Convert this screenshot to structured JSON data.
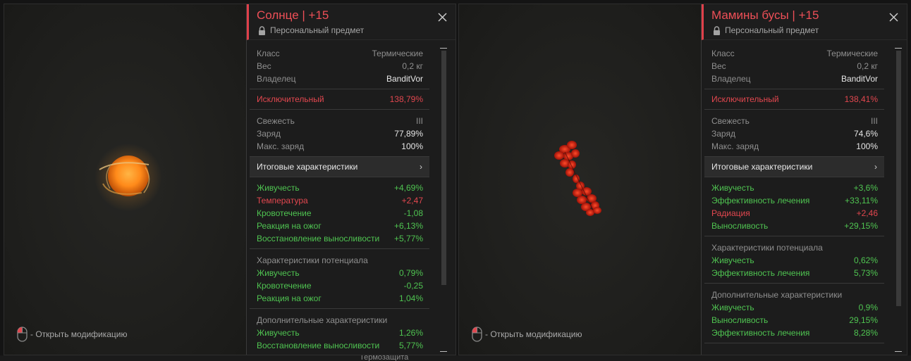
{
  "hint_label": "- Открыть модификацию",
  "bottom_strip_text": "Термозащита",
  "windows": [
    {
      "title": "Солнце | +15",
      "personal": "Персональный предмет",
      "info": [
        {
          "k": "Класс",
          "v": "Термические"
        },
        {
          "k": "Вес",
          "v": "0,2 кг"
        },
        {
          "k": "Владелец",
          "v": "BanditVor"
        }
      ],
      "quality": {
        "k": "Исключительный",
        "v": "138,79%"
      },
      "state": [
        {
          "k": "Свежесть",
          "v": "III"
        },
        {
          "k": "Заряд",
          "v": "77,89%"
        },
        {
          "k": "Макс. заряд",
          "v": "100%"
        }
      ],
      "summary_label": "Итоговые характеристики",
      "summary_chevron": "›",
      "final_stats": [
        {
          "k": "Живучесть",
          "v": "+4,69%",
          "c": "green"
        },
        {
          "k": "Температура",
          "v": "+2,47",
          "c": "red"
        },
        {
          "k": "Кровотечение",
          "v": "-1,08",
          "c": "green"
        },
        {
          "k": "Реакция на ожог",
          "v": "+6,13%",
          "c": "green"
        },
        {
          "k": "Восстановление выносливости",
          "v": "+5,77%",
          "c": "green"
        }
      ],
      "potential_title": "Характеристики потенциала",
      "potential": [
        {
          "k": "Живучесть",
          "v": "0,79%",
          "c": "green"
        },
        {
          "k": "Кровотечение",
          "v": "-0,25",
          "c": "green"
        },
        {
          "k": "Реакция на ожог",
          "v": "1,04%",
          "c": "green"
        }
      ],
      "extra_title": "Дополнительные характеристики",
      "extra": [
        {
          "k": "Живучесть",
          "v": "1,26%",
          "c": "green"
        },
        {
          "k": "Восстановление выносливости",
          "v": "5,77%",
          "c": "green"
        }
      ],
      "scroll_fraction": 0.79
    },
    {
      "title": "Мамины бусы | +15",
      "personal": "Персональный предмет",
      "info": [
        {
          "k": "Класс",
          "v": "Термические"
        },
        {
          "k": "Вес",
          "v": "0,2 кг"
        },
        {
          "k": "Владелец",
          "v": "BanditVor"
        }
      ],
      "quality": {
        "k": "Исключительный",
        "v": "138,41%"
      },
      "state": [
        {
          "k": "Свежесть",
          "v": "III"
        },
        {
          "k": "Заряд",
          "v": "74,6%"
        },
        {
          "k": "Макс. заряд",
          "v": "100%"
        }
      ],
      "summary_label": "Итоговые характеристики",
      "summary_chevron": "›",
      "final_stats": [
        {
          "k": "Живучесть",
          "v": "+3,6%",
          "c": "green"
        },
        {
          "k": "Эффективность лечения",
          "v": "+33,11%",
          "c": "green"
        },
        {
          "k": "Радиация",
          "v": "+2,46",
          "c": "red"
        },
        {
          "k": "Выносливость",
          "v": "+29,15%",
          "c": "green"
        }
      ],
      "potential_title": "Характеристики потенциала",
      "potential": [
        {
          "k": "Живучесть",
          "v": "0,62%",
          "c": "green"
        },
        {
          "k": "Эффективность лечения",
          "v": "5,73%",
          "c": "green"
        }
      ],
      "extra_title": "Дополнительные характеристики",
      "extra": [
        {
          "k": "Живучесть",
          "v": "0,9%",
          "c": "green"
        },
        {
          "k": "Выносливость",
          "v": "29,15%",
          "c": "green"
        },
        {
          "k": "Эффективность лечения",
          "v": "8,28%",
          "c": "green"
        }
      ],
      "scroll_fraction": 0.86
    }
  ],
  "colors": {
    "accent_red": "#e2474f",
    "stat_green": "#4fc451"
  }
}
